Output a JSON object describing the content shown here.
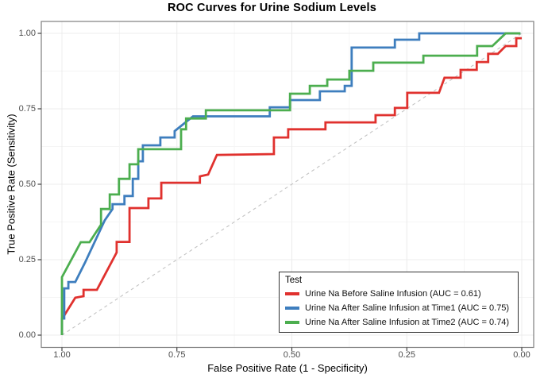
{
  "title": "ROC Curves for Urine Sodium Levels",
  "chart_data": {
    "type": "line",
    "subtype": "roc-step-curves",
    "title": "ROC Curves for Urine Sodium Levels",
    "xlabel": "False Positive Rate (1 - Specificity)",
    "ylabel": "True Positive Rate (Sensitivity)",
    "x_axis": {
      "ticks": [
        1.0,
        0.75,
        0.5,
        0.25,
        0.0
      ],
      "tick_labels": [
        "1.00",
        "0.75",
        "0.50",
        "0.25",
        "0.00"
      ],
      "reversed": true,
      "range": [
        1.0,
        0.0
      ]
    },
    "y_axis": {
      "ticks": [
        0.0,
        0.25,
        0.5,
        0.75,
        1.0
      ],
      "tick_labels": [
        "0.00",
        "0.25",
        "0.50",
        "0.75",
        "1.00"
      ],
      "range": [
        0.0,
        1.0
      ]
    },
    "grid": {
      "major": true,
      "minor": true,
      "major_color": "#ececec",
      "minor_color": "#f5f5f5"
    },
    "panel_border_color": "#7f7f7f",
    "tick_mark_color": "#333333",
    "reference_line": {
      "style": "dashed",
      "color": "#c3c3c3",
      "from": [
        1,
        0
      ],
      "to": [
        0,
        1
      ]
    },
    "legend": {
      "title": "Test",
      "position": "inside-bottom-right"
    },
    "series": [
      {
        "name": "Urine Na Before Saline Infusion",
        "label": "Urine Na Before Saline Infusion (AUC = 0.61)",
        "auc": 0.61,
        "color": "#e0312e",
        "points": [
          [
            1,
            0
          ],
          [
            1,
            0.053
          ],
          [
            0.971,
            0.124
          ],
          [
            0.953,
            0.129
          ],
          [
            0.953,
            0.15
          ],
          [
            0.924,
            0.15
          ],
          [
            0.881,
            0.274
          ],
          [
            0.881,
            0.309
          ],
          [
            0.853,
            0.309
          ],
          [
            0.853,
            0.421
          ],
          [
            0.812,
            0.421
          ],
          [
            0.812,
            0.453
          ],
          [
            0.784,
            0.453
          ],
          [
            0.784,
            0.505
          ],
          [
            0.7,
            0.505
          ],
          [
            0.7,
            0.526
          ],
          [
            0.682,
            0.532
          ],
          [
            0.663,
            0.597
          ],
          [
            0.539,
            0.6
          ],
          [
            0.539,
            0.655
          ],
          [
            0.508,
            0.655
          ],
          [
            0.508,
            0.682
          ],
          [
            0.427,
            0.682
          ],
          [
            0.427,
            0.705
          ],
          [
            0.318,
            0.705
          ],
          [
            0.318,
            0.729
          ],
          [
            0.276,
            0.729
          ],
          [
            0.276,
            0.753
          ],
          [
            0.249,
            0.753
          ],
          [
            0.249,
            0.803
          ],
          [
            0.18,
            0.803
          ],
          [
            0.168,
            0.853
          ],
          [
            0.133,
            0.853
          ],
          [
            0.133,
            0.879
          ],
          [
            0.098,
            0.879
          ],
          [
            0.098,
            0.905
          ],
          [
            0.073,
            0.905
          ],
          [
            0.073,
            0.932
          ],
          [
            0.052,
            0.932
          ],
          [
            0.035,
            0.958
          ],
          [
            0.012,
            0.958
          ],
          [
            0.012,
            0.984
          ],
          [
            0,
            0.984
          ]
        ]
      },
      {
        "name": "Urine Na After Saline Infusion at Time1",
        "label": "Urine Na After Saline Infusion at Time1 (AUC = 0.75)",
        "auc": 0.75,
        "color": "#3e7ebe",
        "points": [
          [
            1,
            0
          ],
          [
            1,
            0.055
          ],
          [
            0.995,
            0.055
          ],
          [
            0.995,
            0.155
          ],
          [
            0.986,
            0.155
          ],
          [
            0.986,
            0.176
          ],
          [
            0.971,
            0.176
          ],
          [
            0.95,
            0.24
          ],
          [
            0.907,
            0.38
          ],
          [
            0.89,
            0.418
          ],
          [
            0.89,
            0.434
          ],
          [
            0.864,
            0.434
          ],
          [
            0.864,
            0.461
          ],
          [
            0.846,
            0.461
          ],
          [
            0.846,
            0.518
          ],
          [
            0.834,
            0.518
          ],
          [
            0.834,
            0.576
          ],
          [
            0.824,
            0.576
          ],
          [
            0.824,
            0.629
          ],
          [
            0.786,
            0.629
          ],
          [
            0.786,
            0.655
          ],
          [
            0.755,
            0.655
          ],
          [
            0.755,
            0.676
          ],
          [
            0.715,
            0.725
          ],
          [
            0.548,
            0.725
          ],
          [
            0.548,
            0.755
          ],
          [
            0.504,
            0.755
          ],
          [
            0.504,
            0.779
          ],
          [
            0.439,
            0.779
          ],
          [
            0.439,
            0.808
          ],
          [
            0.385,
            0.808
          ],
          [
            0.385,
            0.826
          ],
          [
            0.37,
            0.826
          ],
          [
            0.37,
            0.953
          ],
          [
            0.276,
            0.953
          ],
          [
            0.276,
            0.979
          ],
          [
            0.223,
            0.979
          ],
          [
            0.223,
            1
          ],
          [
            0.003,
            1
          ]
        ]
      },
      {
        "name": "Urine Na After Saline Infusion at Time2",
        "label": "Urine Na After Saline Infusion at Time2 (AUC = 0.74)",
        "auc": 0.74,
        "color": "#4cae4f",
        "points": [
          [
            1,
            0
          ],
          [
            1,
            0.192
          ],
          [
            0.959,
            0.308
          ],
          [
            0.94,
            0.308
          ],
          [
            0.915,
            0.366
          ],
          [
            0.915,
            0.418
          ],
          [
            0.896,
            0.418
          ],
          [
            0.896,
            0.466
          ],
          [
            0.876,
            0.466
          ],
          [
            0.876,
            0.518
          ],
          [
            0.853,
            0.518
          ],
          [
            0.853,
            0.566
          ],
          [
            0.834,
            0.566
          ],
          [
            0.834,
            0.616
          ],
          [
            0.741,
            0.616
          ],
          [
            0.741,
            0.682
          ],
          [
            0.73,
            0.682
          ],
          [
            0.73,
            0.718
          ],
          [
            0.687,
            0.718
          ],
          [
            0.687,
            0.745
          ],
          [
            0.504,
            0.745
          ],
          [
            0.504,
            0.8
          ],
          [
            0.461,
            0.8
          ],
          [
            0.461,
            0.826
          ],
          [
            0.423,
            0.826
          ],
          [
            0.423,
            0.847
          ],
          [
            0.375,
            0.847
          ],
          [
            0.375,
            0.876
          ],
          [
            0.323,
            0.876
          ],
          [
            0.323,
            0.903
          ],
          [
            0.214,
            0.903
          ],
          [
            0.214,
            0.926
          ],
          [
            0.097,
            0.926
          ],
          [
            0.097,
            0.958
          ],
          [
            0.064,
            0.958
          ],
          [
            0.035,
            1
          ],
          [
            0.003,
            1
          ]
        ]
      }
    ]
  }
}
